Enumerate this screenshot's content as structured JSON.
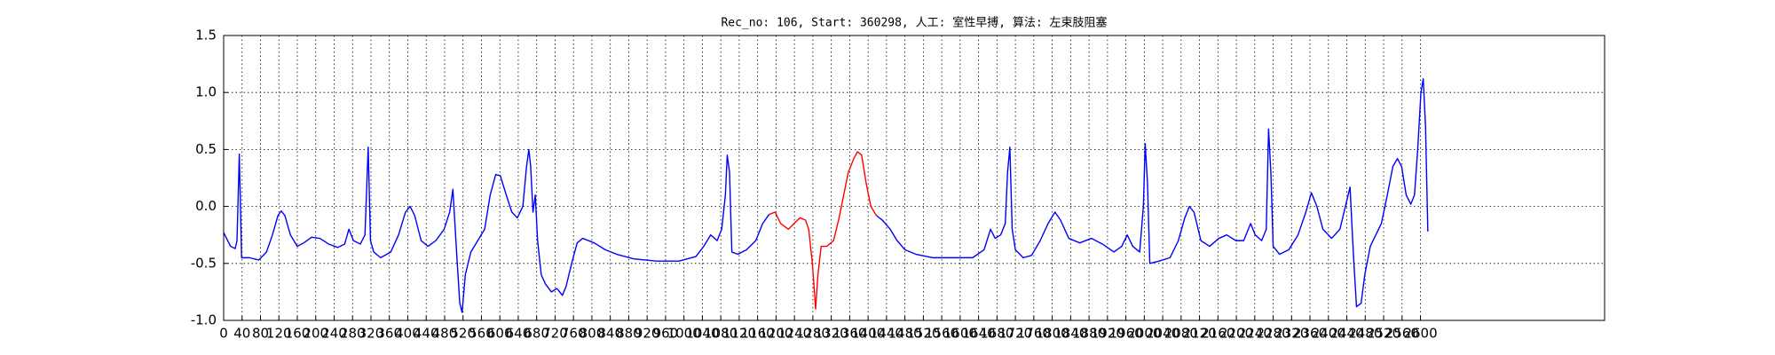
{
  "chart_data": {
    "type": "line",
    "title": "Rec_no: 106, Start: 360298, 人工: 室性早搏, 算法: 左束肢阻塞",
    "xlim": [
      0,
      3000
    ],
    "xticks": [
      0,
      40,
      80,
      120,
      160,
      200,
      240,
      280,
      320,
      360,
      400,
      440,
      480,
      520,
      560,
      600,
      640,
      680,
      720,
      760,
      800,
      840,
      880,
      920,
      960,
      1000,
      1040,
      1080,
      1120,
      1160,
      1200,
      1240,
      1280,
      1320,
      1360,
      1400,
      1440,
      1480,
      1520,
      1560,
      1600,
      1640,
      1680,
      1720,
      1760,
      1800,
      1840,
      1880,
      1920,
      1960,
      2000,
      2040,
      2080,
      2120,
      2160,
      2200,
      2240,
      2280,
      2320,
      2360,
      2400,
      2440,
      2480,
      2520,
      2560,
      2600
    ],
    "ylim": [
      -1,
      1.5
    ],
    "yticks": [
      {
        "value": -1,
        "label": "-1.0"
      },
      -0.5,
      {
        "value": 0,
        "label": "0.0"
      },
      0.5,
      {
        "value": 1,
        "label": "1.0"
      },
      1.5
    ],
    "grid": true,
    "series": [
      {
        "color": "#0000ff",
        "x": [
          0,
          15,
          25,
          29,
          34,
          39,
          56,
          76,
          93,
          106,
          118,
          125,
          133,
          145,
          160,
          174,
          191,
          209,
          228,
          248,
          263,
          272,
          282,
          297,
          307,
          314,
          319,
          326,
          341,
          363,
          380,
          395,
          405,
          415,
          429,
          444,
          461,
          479,
          491,
          498,
          506,
          513,
          518,
          525,
          537,
          552,
          567,
          579,
          591,
          601,
          614,
          626,
          638,
          650,
          658,
          663,
          667,
          672,
          677,
          682,
          690,
          699,
          712,
          724,
          736,
          744,
          756,
          768,
          780,
          805,
          829,
          854,
          891,
          940,
          989,
          1026,
          1043,
          1058,
          1072,
          1082,
          1090,
          1094,
          1099,
          1104,
          1117,
          1136,
          1156,
          1171,
          1185
        ],
        "values": [
          -0.23,
          -0.35,
          -0.37,
          -0.3,
          0.46,
          -0.45,
          -0.45,
          -0.47,
          -0.4,
          -0.25,
          -0.08,
          -0.04,
          -0.08,
          -0.25,
          -0.35,
          -0.32,
          -0.27,
          -0.28,
          -0.33,
          -0.36,
          -0.33,
          -0.2,
          -0.3,
          -0.33,
          -0.25,
          0.52,
          -0.3,
          -0.4,
          -0.45,
          -0.4,
          -0.25,
          -0.05,
          0.0,
          -0.08,
          -0.3,
          -0.35,
          -0.3,
          -0.2,
          -0.05,
          0.15,
          -0.4,
          -0.85,
          -0.93,
          -0.6,
          -0.4,
          -0.3,
          -0.2,
          0.1,
          0.28,
          0.27,
          0.1,
          -0.05,
          -0.1,
          0.0,
          0.35,
          0.5,
          0.35,
          -0.05,
          0.1,
          -0.3,
          -0.6,
          -0.68,
          -0.75,
          -0.72,
          -0.78,
          -0.7,
          -0.5,
          -0.32,
          -0.28,
          -0.32,
          -0.38,
          -0.42,
          -0.46,
          -0.48,
          -0.48,
          -0.44,
          -0.35,
          -0.25,
          -0.3,
          -0.2,
          0.1,
          0.45,
          0.3,
          -0.4,
          -0.42,
          -0.38,
          -0.3,
          -0.15,
          -0.07
        ]
      },
      {
        "color": "#ff0000",
        "x": [
          1185,
          1198,
          1210,
          1227,
          1239,
          1252,
          1264,
          1271,
          1279,
          1286,
          1291,
          1298,
          1310,
          1325,
          1337,
          1347,
          1357,
          1369,
          1377,
          1386,
          1396,
          1406,
          1418
        ],
        "values": [
          -0.07,
          -0.05,
          -0.15,
          -0.2,
          -0.15,
          -0.1,
          -0.12,
          -0.2,
          -0.5,
          -0.9,
          -0.6,
          -0.35,
          -0.35,
          -0.3,
          -0.1,
          0.1,
          0.3,
          0.42,
          0.48,
          0.45,
          0.2,
          0.0,
          -0.08
        ]
      },
      {
        "color": "#0000ff",
        "x": [
          1418,
          1431,
          1448,
          1463,
          1480,
          1504,
          1541,
          1590,
          1627,
          1652,
          1666,
          1676,
          1688,
          1698,
          1703,
          1708,
          1713,
          1720,
          1737,
          1755,
          1774,
          1791,
          1806,
          1818,
          1836,
          1860,
          1885,
          1909,
          1934,
          1951,
          1963,
          1975,
          1990,
          1998,
          2002,
          2007,
          2012,
          2032,
          2056,
          2074,
          2088,
          2098,
          2108,
          2123,
          2142,
          2162,
          2179,
          2199,
          2216,
          2231,
          2241,
          2255,
          2265,
          2270,
          2275,
          2280,
          2294,
          2314,
          2334,
          2351,
          2363,
          2375,
          2388,
          2407,
          2425,
          2437,
          2447,
          2454,
          2461,
          2471,
          2479,
          2491,
          2503,
          2515,
          2528,
          2540,
          2550,
          2559,
          2569,
          2579,
          2587,
          2594,
          2601,
          2606,
          2611,
          2616
        ],
        "values": [
          -0.08,
          -0.12,
          -0.2,
          -0.3,
          -0.38,
          -0.42,
          -0.45,
          -0.45,
          -0.45,
          -0.38,
          -0.2,
          -0.28,
          -0.25,
          -0.15,
          0.3,
          0.52,
          -0.2,
          -0.38,
          -0.45,
          -0.43,
          -0.3,
          -0.15,
          -0.05,
          -0.12,
          -0.28,
          -0.32,
          -0.28,
          -0.33,
          -0.4,
          -0.35,
          -0.25,
          -0.35,
          -0.4,
          0.0,
          0.55,
          0.2,
          -0.5,
          -0.48,
          -0.45,
          -0.3,
          -0.1,
          0.0,
          -0.05,
          -0.3,
          -0.35,
          -0.28,
          -0.25,
          -0.3,
          -0.3,
          -0.15,
          -0.25,
          -0.3,
          -0.2,
          0.68,
          0.3,
          -0.35,
          -0.42,
          -0.38,
          -0.25,
          -0.05,
          0.12,
          0.0,
          -0.2,
          -0.28,
          -0.2,
          0.0,
          0.17,
          -0.4,
          -0.88,
          -0.85,
          -0.6,
          -0.35,
          -0.25,
          -0.15,
          0.1,
          0.35,
          0.42,
          0.35,
          0.1,
          0.02,
          0.1,
          0.5,
          1.0,
          1.12,
          0.7,
          -0.22
        ]
      }
    ]
  }
}
